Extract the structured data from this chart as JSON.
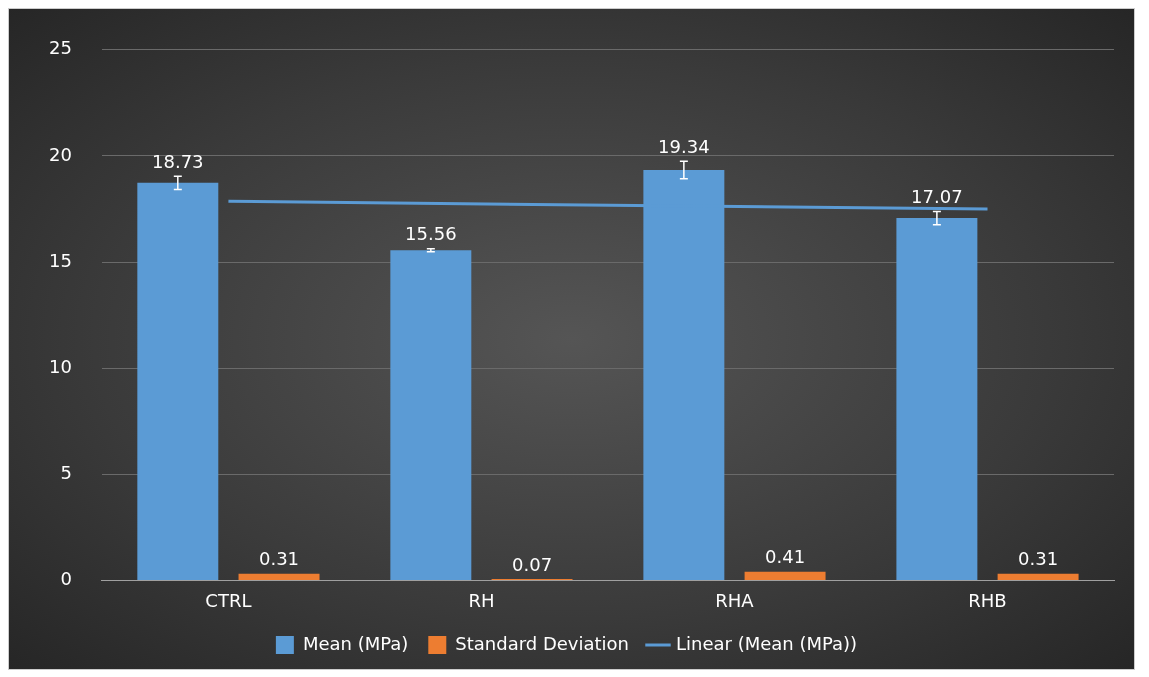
{
  "chart_data": {
    "type": "bar",
    "categories": [
      "CTRL",
      "RH",
      "RHA",
      "RHB"
    ],
    "series": [
      {
        "name": "Mean (MPa)",
        "color": "#5b9bd5",
        "values": [
          18.73,
          15.56,
          19.34,
          17.07
        ],
        "value_labels": [
          "18.73",
          "15.56",
          "19.34",
          "17.07"
        ],
        "errors": [
          0.31,
          0.07,
          0.41,
          0.31
        ]
      },
      {
        "name": "Standard Deviation",
        "color": "#ed7d31",
        "values": [
          0.31,
          0.07,
          0.41,
          0.31
        ],
        "value_labels": [
          "0.31",
          "0.07",
          "0.41",
          "0.31"
        ]
      },
      {
        "name": "Linear (Mean (MPa))",
        "type": "line",
        "color": "#5b9bd5",
        "x": [
          "CTRL",
          "RHB"
        ],
        "values": [
          17.86,
          17.5
        ],
        "marker": "none",
        "line_style": "solid"
      }
    ],
    "ylim": [
      0,
      25
    ],
    "yticks": [
      0,
      5,
      10,
      15,
      20,
      25
    ],
    "grid": "y",
    "legend": "bottom"
  }
}
